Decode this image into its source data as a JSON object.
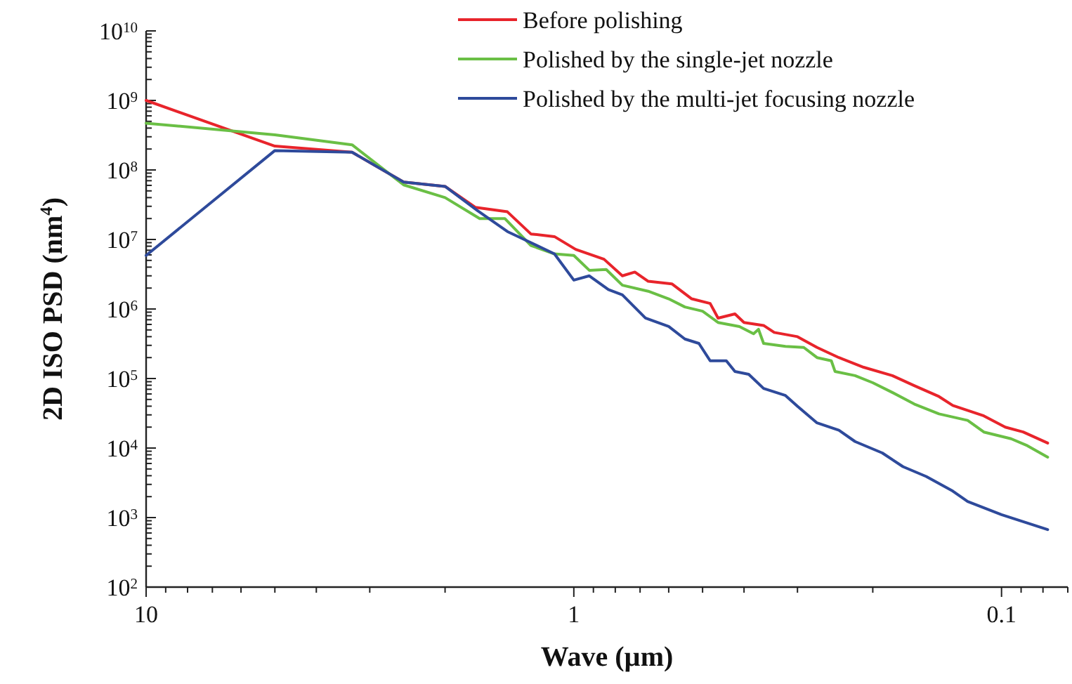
{
  "chart_data": {
    "type": "line",
    "xlabel": "Wave (µm)",
    "ylabel": "2D ISO PSD (nm$^{4}$)",
    "log": "xy",
    "xlim": [
      10,
      0.07
    ],
    "ylim": [
      100,
      10000000000
    ],
    "xticks": [
      10,
      {
        "value": 9,
        "label": null
      },
      {
        "value": 8,
        "label": null
      },
      {
        "value": 7,
        "label": null
      },
      {
        "value": 6,
        "label": null
      },
      {
        "value": 5,
        "label": null
      },
      {
        "value": 4,
        "label": null
      },
      {
        "value": 3,
        "label": null
      },
      {
        "value": 2,
        "label": null
      },
      1,
      {
        "value": 0.9,
        "label": null
      },
      {
        "value": 0.8,
        "label": null
      },
      {
        "value": 0.7,
        "label": null
      },
      {
        "value": 0.6,
        "label": null
      },
      {
        "value": 0.5,
        "label": null
      },
      {
        "value": 0.4,
        "label": null
      },
      {
        "value": 0.3,
        "label": null
      },
      {
        "value": 0.2,
        "label": null
      },
      0.1,
      {
        "value": 0.09,
        "label": null
      },
      {
        "value": 0.08,
        "label": null
      },
      {
        "value": 0.07,
        "label": null
      }
    ],
    "yticks": [
      {
        "value": 100,
        "label": "10$^{2}$"
      },
      {
        "value": 1000,
        "label": "10$^{3}$"
      },
      {
        "value": 10000,
        "label": "10$^{4}$"
      },
      {
        "value": 100000,
        "label": "10$^{5}$"
      },
      {
        "value": 1000000,
        "label": "10$^{6}$"
      },
      {
        "value": 10000000,
        "label": "10$^{7}$"
      },
      {
        "value": 100000000,
        "label": "10$^{8}$"
      },
      {
        "value": 1000000000,
        "label": "10$^{9}$"
      },
      {
        "value": 10000000000,
        "label": "10$^{10}$"
      },
      {
        "value": 200,
        "label": null
      },
      {
        "value": 300,
        "label": null
      },
      {
        "value": 400,
        "label": null
      },
      {
        "value": 500,
        "label": null
      },
      {
        "value": 600,
        "label": null
      },
      {
        "value": 700,
        "label": null
      },
      {
        "value": 800,
        "label": null
      },
      {
        "value": 900,
        "label": null
      },
      {
        "value": 2000,
        "label": null
      },
      {
        "value": 3000,
        "label": null
      },
      {
        "value": 4000,
        "label": null
      },
      {
        "value": 5000,
        "label": null
      },
      {
        "value": 6000,
        "label": null
      },
      {
        "value": 7000,
        "label": null
      },
      {
        "value": 8000,
        "label": null
      },
      {
        "value": 9000,
        "label": null
      },
      {
        "value": 20000,
        "label": null
      },
      {
        "value": 30000,
        "label": null
      },
      {
        "value": 40000,
        "label": null
      },
      {
        "value": 50000,
        "label": null
      },
      {
        "value": 60000,
        "label": null
      },
      {
        "value": 70000,
        "label": null
      },
      {
        "value": 80000,
        "label": null
      },
      {
        "value": 90000,
        "label": null
      },
      {
        "value": 200000,
        "label": null
      },
      {
        "value": 300000,
        "label": null
      },
      {
        "value": 400000,
        "label": null
      },
      {
        "value": 500000,
        "label": null
      },
      {
        "value": 600000,
        "label": null
      },
      {
        "value": 700000,
        "label": null
      },
      {
        "value": 800000,
        "label": null
      },
      {
        "value": 900000,
        "label": null
      },
      {
        "value": 2000000,
        "label": null
      },
      {
        "value": 3000000,
        "label": null
      },
      {
        "value": 4000000,
        "label": null
      },
      {
        "value": 5000000,
        "label": null
      },
      {
        "value": 6000000,
        "label": null
      },
      {
        "value": 7000000,
        "label": null
      },
      {
        "value": 8000000,
        "label": null
      },
      {
        "value": 9000000,
        "label": null
      },
      {
        "value": 20000000,
        "label": null
      },
      {
        "value": 30000000,
        "label": null
      },
      {
        "value": 40000000,
        "label": null
      },
      {
        "value": 50000000,
        "label": null
      },
      {
        "value": 60000000,
        "label": null
      },
      {
        "value": 70000000,
        "label": null
      },
      {
        "value": 80000000,
        "label": null
      },
      {
        "value": 90000000,
        "label": null
      },
      {
        "value": 200000000,
        "label": null
      },
      {
        "value": 300000000,
        "label": null
      },
      {
        "value": 400000000,
        "label": null
      },
      {
        "value": 500000000,
        "label": null
      },
      {
        "value": 600000000,
        "label": null
      },
      {
        "value": 700000000,
        "label": null
      },
      {
        "value": 800000000,
        "label": null
      },
      {
        "value": 900000000,
        "label": null
      },
      {
        "value": 2000000000,
        "label": null
      },
      {
        "value": 3000000000,
        "label": null
      },
      {
        "value": 4000000000,
        "label": null
      },
      {
        "value": 5000000000,
        "label": null
      },
      {
        "value": 6000000000,
        "label": null
      },
      {
        "value": 7000000000,
        "label": null
      },
      {
        "value": 8000000000,
        "label": null
      },
      {
        "value": 9000000000,
        "label": null
      }
    ],
    "grid": false,
    "legend": "top right",
    "marker": "none",
    "line_style": "solid",
    "series": [
      {
        "name": "Before polishing",
        "color": "#e8242b",
        "x": [
          10,
          5,
          3.3,
          2.5,
          2,
          1.7,
          1.43,
          1.26,
          1.11,
          0.99,
          0.85,
          0.77,
          0.72,
          0.67,
          0.59,
          0.53,
          0.48,
          0.46,
          0.42,
          0.4,
          0.36,
          0.34,
          0.3,
          0.27,
          0.24,
          0.21,
          0.18,
          0.16,
          0.14,
          0.13,
          0.11,
          0.098,
          0.089,
          0.078
        ],
        "values": [
          1000000000.0,
          220000000.0,
          180000000.0,
          67000000.0,
          58000000.0,
          29000000.0,
          25000000.0,
          12000000.0,
          11000000.0,
          7200000.0,
          5200000.0,
          3000000.0,
          3400000.0,
          2500000.0,
          2300000.0,
          1400000.0,
          1200000.0,
          740000.0,
          850000.0,
          640000.0,
          580000.0,
          460000.0,
          400000.0,
          280000.0,
          200000.0,
          145000.0,
          110000.0,
          79000.0,
          55000.0,
          41000.0,
          29000.0,
          20000.0,
          17000.0,
          11800.0
        ]
      },
      {
        "name": "Polished by the single-jet nozzle",
        "color": "#6abf45",
        "x": [
          10,
          5,
          3.3,
          2.5,
          2,
          1.66,
          1.45,
          1.26,
          1.11,
          1.0,
          0.92,
          0.84,
          0.77,
          0.67,
          0.6,
          0.55,
          0.5,
          0.46,
          0.41,
          0.38,
          0.37,
          0.36,
          0.32,
          0.29,
          0.27,
          0.25,
          0.245,
          0.22,
          0.2,
          0.18,
          0.16,
          0.14,
          0.12,
          0.11,
          0.095,
          0.087,
          0.078
        ],
        "values": [
          470000000.0,
          320000000.0,
          230000000.0,
          61000000.0,
          40000000.0,
          20000000.0,
          20000000.0,
          8200000.0,
          6200000.0,
          5900000.0,
          3600000.0,
          3700000.0,
          2200000.0,
          1800000.0,
          1400000.0,
          1070000.0,
          930000.0,
          640000.0,
          560000.0,
          440000.0,
          510000.0,
          320000.0,
          290000.0,
          280000.0,
          200000.0,
          180000.0,
          126000.0,
          110000.0,
          87000.0,
          63000.0,
          43000.0,
          31000.0,
          25000.0,
          17000.0,
          13600.0,
          10800.0,
          7400.0
        ]
      },
      {
        "name": "Polished by the multi-jet focusing nozzle",
        "color": "#2e4a9b",
        "x": [
          10,
          5,
          3.3,
          2.5,
          2,
          1.68,
          1.43,
          1.26,
          1.11,
          1.0,
          0.92,
          0.83,
          0.77,
          0.68,
          0.6,
          0.55,
          0.51,
          0.48,
          0.44,
          0.42,
          0.39,
          0.36,
          0.32,
          0.3,
          0.27,
          0.24,
          0.22,
          0.19,
          0.17,
          0.15,
          0.13,
          0.12,
          0.1,
          0.078
        ],
        "values": [
          5900000.0,
          190000000.0,
          180000000.0,
          67000000.0,
          58000000.0,
          26000000.0,
          13000000.0,
          9000000.0,
          6200000.0,
          2600000.0,
          3000000.0,
          1900000.0,
          1600000.0,
          740000.0,
          560000.0,
          370000.0,
          320000.0,
          180000.0,
          180000.0,
          126000.0,
          115000.0,
          72000.0,
          57000.0,
          40000.0,
          23000.0,
          18000.0,
          12400.0,
          8500.0,
          5400.0,
          3900.0,
          2400.0,
          1700.0,
          1100.0,
          670.0
        ]
      }
    ]
  }
}
